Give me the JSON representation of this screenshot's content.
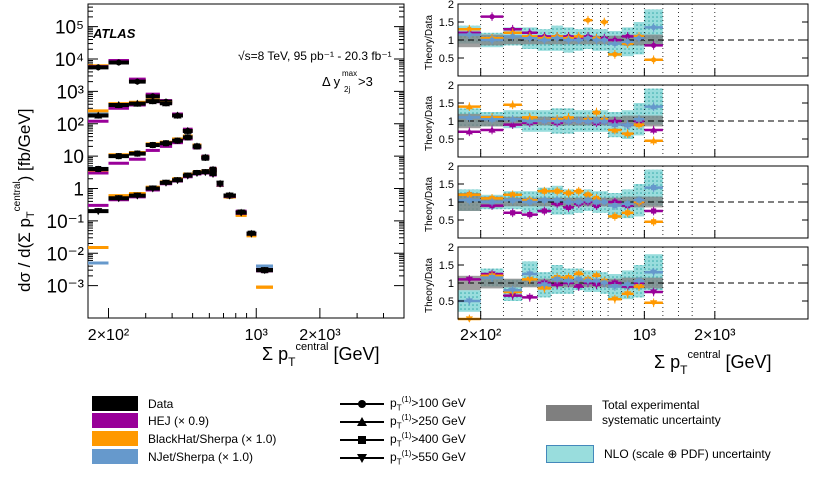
{
  "figure": {
    "experiment": "ATLAS",
    "energy_label": "√s=8 TeV, 95 pb⁻¹ - 20.3 fb⁻¹",
    "cut_label": "Δ y_2j^max > 3",
    "colors": {
      "data": "#000000",
      "hej": "#990099",
      "blackhat": "#ff9900",
      "njet": "#6699cc",
      "exp_band": "#7f7f7f",
      "nlo_band": "#99dddd"
    }
  },
  "chart_data": [
    {
      "type": "scatter",
      "name": "main-spectrum",
      "ylabel": "dσ / d(Σ p_T^central) [fb/GeV]",
      "xlabel": "Σ p_T^central [GeV]",
      "x_scale": "log",
      "y_scale": "log",
      "xlim": [
        160,
        5000
      ],
      "ylim": [
        0.0001,
        500000
      ],
      "y_tick_labels": [
        "10⁻³",
        "10⁻²",
        "10⁻¹",
        "1",
        "10",
        "10²",
        "10³",
        "10⁴",
        "10⁵"
      ],
      "x_tick_labels": [
        "2×10²",
        "10³",
        "2×10³"
      ],
      "x_edges": [
        160,
        200,
        250,
        300,
        350,
        400,
        450,
        500,
        550,
        600,
        650,
        700,
        800,
        900,
        1000,
        1200,
        1400,
        1600,
        2000,
        5000
      ],
      "series": [
        {
          "name": "pT(1)>100 GeV",
          "marker": "circle",
          "data": [
            5500,
            7800,
            2000,
            700,
            480,
            180,
            60,
            20,
            9,
            3.8,
            1.4,
            0.6,
            0.18,
            0.04,
            0.003
          ],
          "hej": [
            5800,
            9000,
            2400,
            820,
            520,
            200,
            68,
            22,
            10,
            4.2,
            1.5,
            0.62,
            0.2,
            0.042,
            0.004
          ],
          "blackhat": [
            6200,
            8500,
            2200,
            760,
            500,
            190,
            62,
            21,
            9.5,
            4.0,
            1.3,
            0.55,
            0.15,
            0.035,
            0.0009
          ],
          "njet": [
            6000,
            8200,
            2100,
            740,
            490,
            185,
            61,
            20.5,
            9.2,
            3.9,
            1.35,
            0.58,
            0.17,
            0.038,
            0.004
          ]
        },
        {
          "name": "pT(1)>250 GeV",
          "marker": "triangle-up",
          "data": [
            180,
            380,
            420,
            500,
            430,
            180,
            60,
            20,
            9,
            3.8,
            1.4,
            0.6,
            0.18,
            0.04,
            0.003
          ],
          "hej": [
            120,
            300,
            380,
            480,
            420,
            178,
            58,
            19.5,
            8.8,
            3.7,
            1.35,
            0.58,
            0.17,
            0.039,
            0.0029
          ],
          "blackhat": [
            250,
            420,
            460,
            540,
            450,
            185,
            62,
            21,
            9.4,
            4.0,
            1.3,
            0.55,
            0.15,
            0.035,
            0.0009
          ],
          "njet": [
            200,
            400,
            440,
            520,
            440,
            182,
            61,
            20.5,
            9.2,
            3.9,
            1.35,
            0.58,
            0.17,
            0.038,
            0.004
          ]
        },
        {
          "name": "pT(1)>400 GeV",
          "marker": "square",
          "data": [
            4,
            10,
            12,
            22,
            25,
            30,
            38,
            20,
            9,
            3.8,
            1.4,
            0.6,
            0.18,
            0.04,
            0.003
          ],
          "hej": [
            3,
            6,
            8,
            15,
            20,
            26,
            34,
            18,
            8.6,
            3.6,
            1.3,
            0.57,
            0.17,
            0.039,
            0.0029
          ],
          "blackhat": [
            3.5,
            11,
            13,
            24,
            27,
            34,
            42,
            22,
            9.5,
            4.0,
            1.3,
            0.55,
            0.15,
            0.035,
            0.0009
          ],
          "njet": [
            4.2,
            10.5,
            12.5,
            23,
            26,
            32,
            40,
            21,
            9.2,
            3.9,
            1.35,
            0.58,
            0.17,
            0.038,
            0.004
          ]
        },
        {
          "name": "pT(1)>550 GeV",
          "marker": "triangle-down",
          "data": [
            0.2,
            0.5,
            0.6,
            1.0,
            1.5,
            1.8,
            2.5,
            3.0,
            3.2,
            2.8,
            1.4,
            0.6,
            0.18,
            0.04,
            0.003
          ],
          "hej": [
            0.3,
            0.45,
            0.55,
            0.9,
            1.4,
            1.7,
            2.3,
            2.8,
            3.0,
            2.6,
            1.3,
            0.57,
            0.17,
            0.039,
            0.0029
          ],
          "blackhat": [
            0.015,
            0.6,
            0.7,
            1.1,
            1.6,
            2.0,
            2.8,
            3.3,
            3.5,
            3.0,
            1.3,
            0.55,
            0.15,
            0.035,
            0.0009
          ],
          "njet": [
            0.005,
            0.55,
            0.65,
            1.05,
            1.55,
            1.9,
            2.6,
            3.1,
            3.3,
            2.9,
            1.35,
            0.58,
            0.17,
            0.038,
            0.004
          ]
        }
      ]
    },
    {
      "type": "scatter",
      "name": "ratio-panels",
      "ylabel": "Theory/Data",
      "xlabel": "Σ p_T^central [GeV]",
      "x_scale": "log",
      "xlim": [
        160,
        5000
      ],
      "ylim": [
        0,
        2
      ],
      "y_tick_labels": [
        "0.5",
        "1",
        "1.5",
        "2"
      ],
      "x_tick_labels": [
        "2×10²",
        "10³",
        "2×10³"
      ],
      "panels": [
        {
          "name": "pT(1)>100 GeV",
          "marker": "circle",
          "hej": [
            1.2,
            1.65,
            1.3,
            1.2,
            1.1,
            1.1,
            1.1,
            1.05,
            1.1,
            1.05,
            1.05,
            1.0,
            1.1,
            1.05,
            0.85
          ],
          "blackhat": [
            1.3,
            1.05,
            1.2,
            1.1,
            1.05,
            1.1,
            1.05,
            1.1,
            1.55,
            1.05,
            1.5,
            0.6,
            0.9,
            1.1,
            0.45
          ],
          "njet": [
            1.15,
            1.0,
            1.1,
            1.05,
            1.0,
            1.05,
            1.0,
            1.0,
            1.05,
            1.0,
            1.0,
            0.9,
            0.95,
            1.05,
            1.35
          ],
          "exp_unc": [
            0.2,
            0.15,
            0.12,
            0.12,
            0.12,
            0.12,
            0.12,
            0.12,
            0.12,
            0.12,
            0.12,
            0.12,
            0.15,
            0.15,
            0.15
          ],
          "nlo_unc": [
            0.25,
            0.2,
            0.25,
            0.3,
            0.3,
            0.35,
            0.35,
            0.3,
            0.3,
            0.3,
            0.3,
            0.35,
            0.4,
            0.45,
            0.5
          ]
        },
        {
          "name": "pT(1)>250 GeV",
          "marker": "triangle-up",
          "hej": [
            0.7,
            0.75,
            0.9,
            0.95,
            1.0,
            0.95,
            1.0,
            1.0,
            1.0,
            0.95,
            1.0,
            1.0,
            0.9,
            1.0,
            0.75
          ],
          "blackhat": [
            1.4,
            1.1,
            1.45,
            1.1,
            1.0,
            1.05,
            1.1,
            1.0,
            1.05,
            1.25,
            1.05,
            0.75,
            0.65,
            0.9,
            0.45
          ],
          "njet": [
            1.1,
            1.05,
            1.05,
            1.0,
            1.0,
            1.0,
            1.0,
            1.0,
            1.0,
            1.0,
            1.0,
            0.9,
            0.9,
            1.05,
            1.4
          ],
          "exp_unc": [
            0.2,
            0.15,
            0.12,
            0.12,
            0.12,
            0.12,
            0.12,
            0.12,
            0.12,
            0.12,
            0.12,
            0.12,
            0.15,
            0.15,
            0.15
          ],
          "nlo_unc": [
            0.25,
            0.2,
            0.25,
            0.3,
            0.3,
            0.35,
            0.35,
            0.3,
            0.3,
            0.3,
            0.3,
            0.35,
            0.4,
            0.45,
            0.5
          ]
        },
        {
          "name": "pT(1)>400 GeV",
          "marker": "square",
          "hej": [
            1.2,
            0.9,
            0.7,
            0.65,
            0.75,
            0.95,
            0.85,
            0.95,
            1.0,
            0.9,
            1.0,
            1.0,
            0.9,
            1.0,
            0.75
          ],
          "blackhat": [
            1.2,
            1.1,
            1.2,
            1.05,
            1.3,
            1.3,
            1.25,
            1.3,
            1.2,
            1.1,
            1.0,
            0.6,
            0.7,
            1.0,
            0.45
          ],
          "njet": [
            1.05,
            1.0,
            1.05,
            1.0,
            1.05,
            1.05,
            1.0,
            1.0,
            1.05,
            1.0,
            1.0,
            0.9,
            0.95,
            1.05,
            1.4
          ],
          "exp_unc": [
            0.25,
            0.15,
            0.12,
            0.12,
            0.12,
            0.12,
            0.12,
            0.12,
            0.12,
            0.12,
            0.12,
            0.12,
            0.15,
            0.15,
            0.15
          ],
          "nlo_unc": [
            0.3,
            0.2,
            0.25,
            0.3,
            0.35,
            0.4,
            0.35,
            0.3,
            0.3,
            0.3,
            0.3,
            0.35,
            0.4,
            0.45,
            0.5
          ]
        },
        {
          "name": "pT(1)>550 GeV",
          "marker": "triangle-down",
          "hej": [
            1.1,
            1.25,
            0.65,
            0.6,
            1.0,
            0.95,
            1.0,
            0.9,
            1.0,
            0.95,
            1.0,
            1.0,
            0.9,
            1.0,
            0.75
          ],
          "blackhat": [
            0.0,
            1.2,
            0.75,
            1.1,
            0.85,
            1.15,
            1.15,
            1.25,
            1.1,
            1.2,
            1.05,
            0.55,
            0.7,
            0.9,
            0.45
          ],
          "njet": [
            0.5,
            1.15,
            0.8,
            1.25,
            0.95,
            1.1,
            1.05,
            1.1,
            1.05,
            1.05,
            1.0,
            0.9,
            0.95,
            1.05,
            1.3
          ],
          "exp_unc": [
            0.2,
            0.15,
            0.12,
            0.12,
            0.12,
            0.12,
            0.12,
            0.12,
            0.12,
            0.12,
            0.12,
            0.12,
            0.15,
            0.15,
            0.15
          ],
          "nlo_unc": [
            0.3,
            0.25,
            0.3,
            0.35,
            0.35,
            0.4,
            0.35,
            0.3,
            0.3,
            0.3,
            0.3,
            0.35,
            0.4,
            0.45,
            0.5
          ]
        }
      ]
    }
  ],
  "legend": {
    "generators": [
      {
        "label": "Data",
        "color": "#000000"
      },
      {
        "label": "HEJ (× 0.9)",
        "color": "#990099"
      },
      {
        "label": "BlackHat/Sherpa (× 1.0)",
        "color": "#ff9900"
      },
      {
        "label": "NJet/Sherpa (× 1.0)",
        "color": "#6699cc"
      }
    ],
    "cuts": [
      {
        "label": "p_T^(1)>100 GeV",
        "marker": "circle"
      },
      {
        "label": "p_T^(1)>250 GeV",
        "marker": "triangle-up"
      },
      {
        "label": "p_T^(1)>400 GeV",
        "marker": "square"
      },
      {
        "label": "p_T^(1)>550 GeV",
        "marker": "triangle-down"
      }
    ],
    "exp_unc_label_1": "Total experimental",
    "exp_unc_label_2": "systematic uncertainty",
    "nlo_unc_label": "NLO (scale ⊕ PDF) uncertainty"
  }
}
